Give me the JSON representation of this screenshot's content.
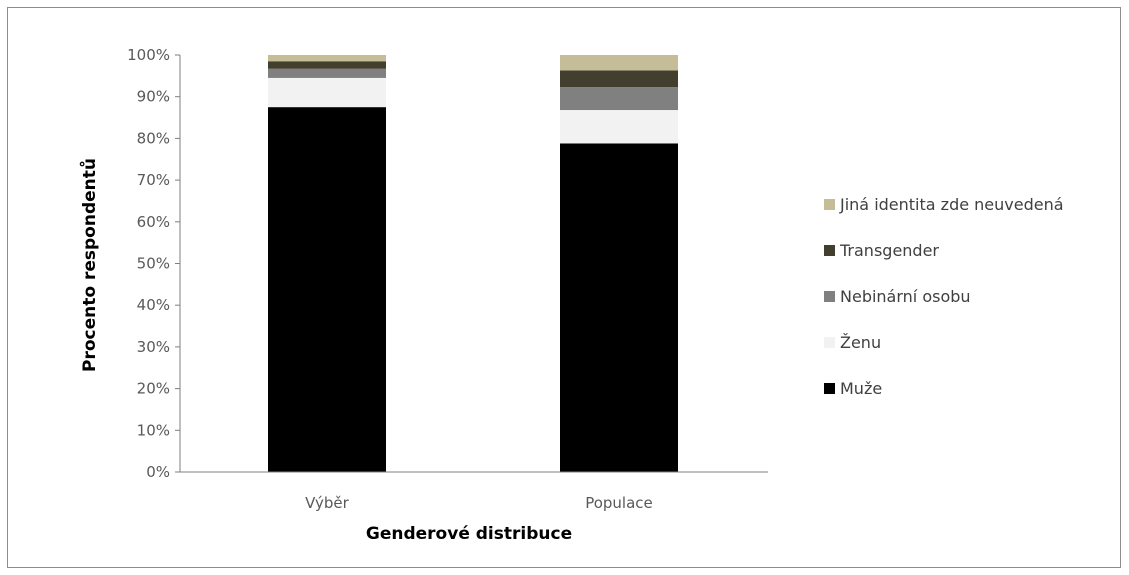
{
  "chart_data": {
    "type": "bar",
    "stacked": true,
    "percent": true,
    "categories": [
      "Výběr",
      "Populace"
    ],
    "series": [
      {
        "name": "Muže",
        "color": "#000000",
        "values": [
          87.5,
          78.8
        ]
      },
      {
        "name": "Ženu",
        "color": "#f2f2f2",
        "values": [
          7.0,
          8.0
        ]
      },
      {
        "name": "Nebinární osobu",
        "color": "#808080",
        "values": [
          2.2,
          5.5
        ]
      },
      {
        "name": "Transgender",
        "color": "#433f2e",
        "values": [
          1.8,
          4.0
        ]
      },
      {
        "name": "Jiná identita zde neuvedená",
        "color": "#c4bd97",
        "values": [
          1.5,
          3.7
        ]
      }
    ],
    "title": "",
    "xlabel": "Genderové distribuce",
    "ylabel": "Procento respondentů",
    "ylim": [
      0,
      100
    ],
    "yticks": [
      "0%",
      "10%",
      "20%",
      "30%",
      "40%",
      "50%",
      "60%",
      "70%",
      "80%",
      "90%",
      "100%"
    ],
    "grid": false,
    "legend_position": "right"
  }
}
